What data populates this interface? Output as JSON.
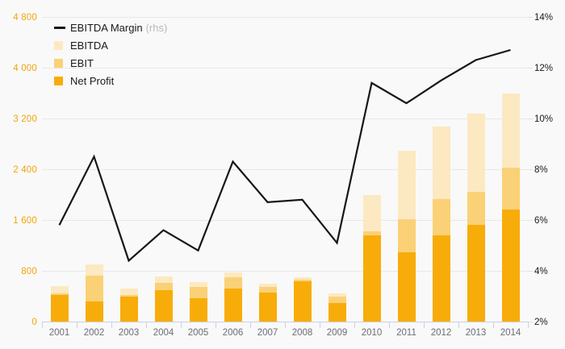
{
  "chart_data": {
    "type": "bar",
    "subtype": "overlapped-bars-with-line",
    "title": "",
    "categories": [
      "2001",
      "2002",
      "2003",
      "2004",
      "2005",
      "2006",
      "2007",
      "2008",
      "2009",
      "2010",
      "2011",
      "2012",
      "2013",
      "2014"
    ],
    "series": [
      {
        "name": "EBITDA Margin (rhs)",
        "type": "line",
        "axis": "right",
        "color": "#161616",
        "values": [
          5.8,
          8.5,
          4.4,
          5.6,
          4.8,
          8.3,
          6.7,
          6.8,
          5.1,
          11.4,
          10.6,
          11.5,
          12.3,
          12.7
        ]
      },
      {
        "name": "EBITDA",
        "type": "bar",
        "axis": "left",
        "color": "#fce9c2",
        "values": [
          560,
          900,
          515,
          710,
          620,
          780,
          600,
          695,
          450,
          2000,
          2690,
          3070,
          3270,
          3600
        ]
      },
      {
        "name": "EBIT",
        "type": "bar",
        "axis": "left",
        "color": "#fad176",
        "values": [
          445,
          725,
          420,
          610,
          545,
          695,
          545,
          660,
          390,
          1420,
          1610,
          1930,
          2040,
          2425
        ]
      },
      {
        "name": "Net Profit",
        "type": "bar",
        "axis": "left",
        "color": "#f8ac09",
        "values": [
          425,
          315,
          395,
          500,
          365,
          515,
          460,
          635,
          290,
          1360,
          1090,
          1360,
          1520,
          1770
        ]
      }
    ],
    "left_axis": {
      "min": 0,
      "max": 4800,
      "step": 800,
      "labels": [
        "0",
        "800",
        "1 600",
        "2 400",
        "3 200",
        "4 000",
        "4 800"
      ],
      "label_color": "#f1a40b"
    },
    "right_axis": {
      "min": 2,
      "max": 14,
      "step": 2,
      "labels": [
        "2%",
        "4%",
        "6%",
        "8%",
        "10%",
        "12%",
        "14%"
      ],
      "label_color": "#1a1a1a"
    },
    "grid": "horizontal",
    "legend_position": "top-left-inside"
  },
  "legend": {
    "margin_label": "EBITDA Margin",
    "margin_suffix": "(rhs)",
    "ebitda_label": "EBITDA",
    "ebit_label": "EBIT",
    "net_profit_label": "Net Profit"
  }
}
